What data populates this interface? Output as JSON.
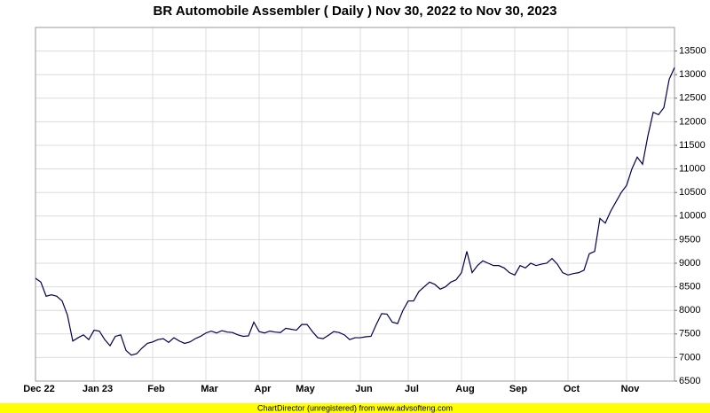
{
  "chart_data": {
    "type": "line",
    "title": "BR Automobile Assembler ( Daily ) Nov 30, 2022 to Nov 30, 2023",
    "footer": "ChartDirector (unregistered) from www.advsofteng.com",
    "categories": [
      "Dec 22",
      null,
      null,
      null,
      null,
      null,
      null,
      null,
      null,
      null,
      null,
      "Jan 23",
      null,
      null,
      null,
      null,
      null,
      null,
      null,
      null,
      null,
      null,
      "Feb",
      null,
      null,
      null,
      null,
      null,
      null,
      null,
      null,
      null,
      "Mar",
      null,
      null,
      null,
      null,
      null,
      null,
      null,
      null,
      null,
      "Apr",
      null,
      null,
      null,
      null,
      null,
      null,
      null,
      "May",
      null,
      null,
      null,
      null,
      null,
      null,
      null,
      null,
      null,
      null,
      "Jun",
      null,
      null,
      null,
      null,
      null,
      null,
      null,
      null,
      "Jul",
      null,
      null,
      null,
      null,
      null,
      null,
      null,
      null,
      null,
      "Aug",
      null,
      null,
      null,
      null,
      null,
      null,
      null,
      null,
      null,
      "Sep",
      null,
      null,
      null,
      null,
      null,
      null,
      null,
      null,
      null,
      "Oct",
      null,
      null,
      null,
      null,
      null,
      null,
      null,
      null,
      null,
      null,
      "Nov",
      null,
      null,
      null,
      null,
      null,
      null,
      null,
      null,
      null
    ],
    "values": [
      8680,
      8600,
      8300,
      8330,
      8300,
      8200,
      7900,
      7350,
      7420,
      7480,
      7380,
      7580,
      7560,
      7380,
      7250,
      7450,
      7480,
      7150,
      7050,
      7080,
      7200,
      7300,
      7330,
      7380,
      7400,
      7320,
      7420,
      7350,
      7300,
      7330,
      7400,
      7450,
      7520,
      7560,
      7520,
      7570,
      7540,
      7530,
      7480,
      7450,
      7460,
      7750,
      7550,
      7520,
      7560,
      7540,
      7530,
      7620,
      7600,
      7580,
      7700,
      7700,
      7550,
      7420,
      7400,
      7470,
      7550,
      7530,
      7480,
      7380,
      7420,
      7420,
      7440,
      7450,
      7700,
      7930,
      7920,
      7750,
      7720,
      8000,
      8200,
      8200,
      8400,
      8500,
      8600,
      8550,
      8450,
      8500,
      8600,
      8650,
      8800,
      9250,
      8800,
      8950,
      9050,
      9000,
      8950,
      8950,
      8900,
      8800,
      8750,
      8950,
      8900,
      9000,
      8950,
      8980,
      9000,
      9100,
      8980,
      8800,
      8750,
      8780,
      8800,
      8850,
      9200,
      9250,
      9950,
      9850,
      10100,
      10300,
      10500,
      10650,
      11000,
      11250,
      11100,
      11700,
      12200,
      12150,
      12300,
      12900,
      13150
    ],
    "color": "#000050",
    "ylim": [
      6500,
      14000
    ],
    "yticks": [
      6500,
      7000,
      7500,
      8000,
      8500,
      9000,
      9500,
      10000,
      10500,
      11000,
      11500,
      12000,
      12500,
      13000,
      13500
    ],
    "grid": true
  }
}
